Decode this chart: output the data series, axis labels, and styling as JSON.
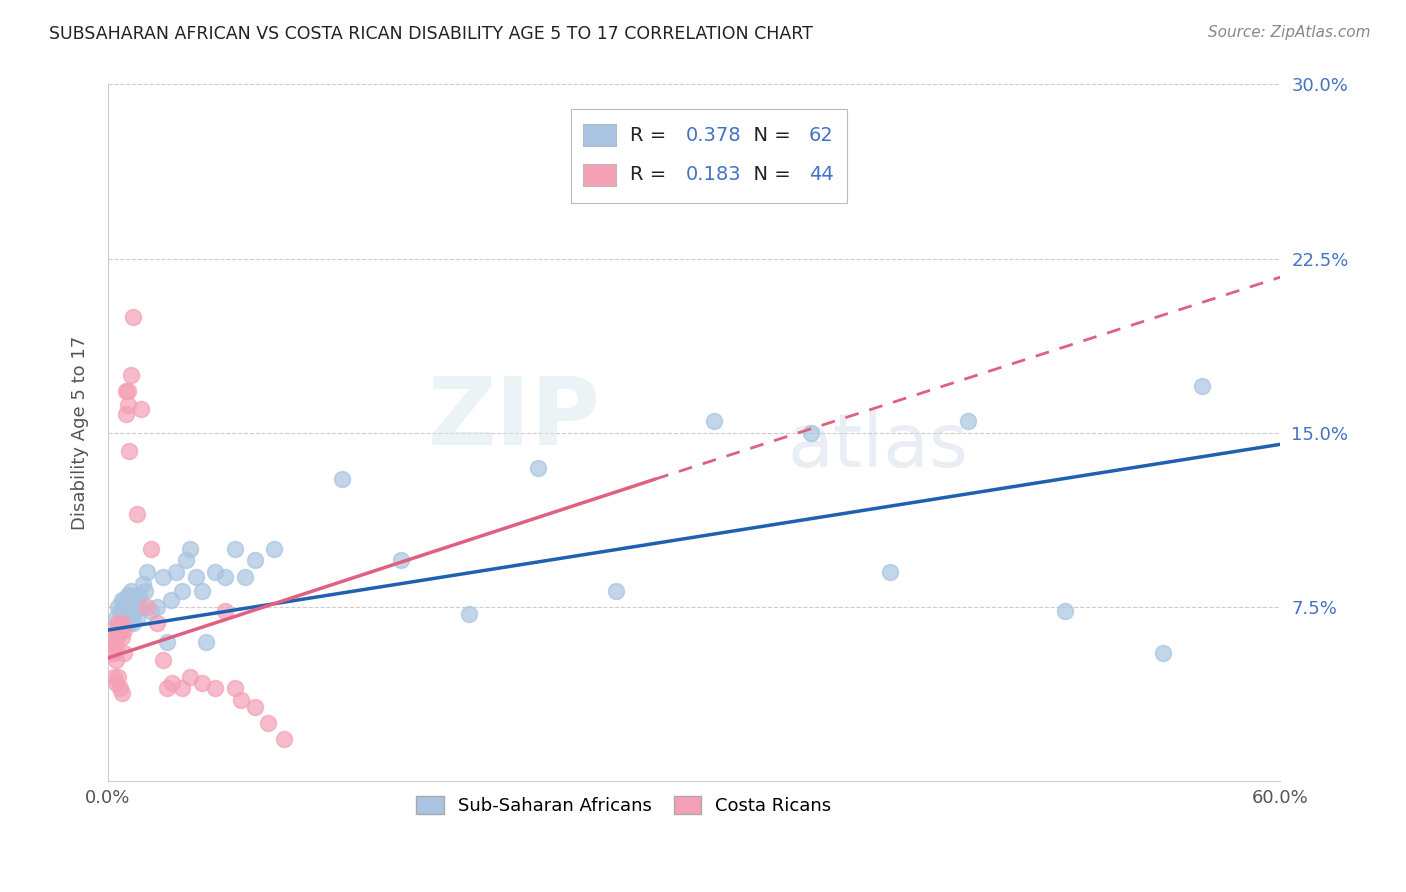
{
  "title": "SUBSAHARAN AFRICAN VS COSTA RICAN DISABILITY AGE 5 TO 17 CORRELATION CHART",
  "source": "Source: ZipAtlas.com",
  "ylabel": "Disability Age 5 to 17",
  "xlim": [
    0,
    0.6
  ],
  "ylim": [
    0,
    0.3
  ],
  "xticks": [
    0.0,
    0.1,
    0.2,
    0.3,
    0.4,
    0.5,
    0.6
  ],
  "yticks": [
    0.0,
    0.075,
    0.15,
    0.225,
    0.3
  ],
  "xtick_labels": [
    "0.0%",
    "",
    "",
    "",
    "",
    "",
    "60.0%"
  ],
  "ytick_labels": [
    "",
    "7.5%",
    "15.0%",
    "22.5%",
    "30.0%"
  ],
  "blue_R": 0.378,
  "blue_N": 62,
  "pink_R": 0.183,
  "pink_N": 44,
  "blue_color": "#A8C4E0",
  "pink_color": "#F4A0B5",
  "blue_line_color": "#2060B0",
  "pink_line_color": "#E06080",
  "watermark_zip": "ZIP",
  "watermark_atlas": "atlas",
  "legend_label_blue": "Sub-Saharan Africans",
  "legend_label_pink": "Costa Ricans",
  "blue_points_x": [
    0.004,
    0.005,
    0.005,
    0.006,
    0.006,
    0.007,
    0.007,
    0.007,
    0.008,
    0.008,
    0.008,
    0.009,
    0.009,
    0.01,
    0.01,
    0.01,
    0.011,
    0.011,
    0.011,
    0.012,
    0.012,
    0.012,
    0.013,
    0.013,
    0.014,
    0.015,
    0.015,
    0.016,
    0.017,
    0.018,
    0.019,
    0.02,
    0.022,
    0.025,
    0.028,
    0.03,
    0.032,
    0.035,
    0.038,
    0.04,
    0.042,
    0.045,
    0.048,
    0.05,
    0.055,
    0.06,
    0.065,
    0.07,
    0.075,
    0.085,
    0.12,
    0.15,
    0.185,
    0.22,
    0.26,
    0.31,
    0.36,
    0.4,
    0.44,
    0.49,
    0.54,
    0.56
  ],
  "blue_points_y": [
    0.07,
    0.068,
    0.075,
    0.068,
    0.073,
    0.068,
    0.073,
    0.078,
    0.068,
    0.073,
    0.078,
    0.068,
    0.075,
    0.068,
    0.073,
    0.08,
    0.068,
    0.075,
    0.08,
    0.07,
    0.075,
    0.082,
    0.068,
    0.075,
    0.073,
    0.07,
    0.078,
    0.08,
    0.075,
    0.085,
    0.082,
    0.09,
    0.073,
    0.075,
    0.088,
    0.06,
    0.078,
    0.09,
    0.082,
    0.095,
    0.1,
    0.088,
    0.082,
    0.06,
    0.09,
    0.088,
    0.1,
    0.088,
    0.095,
    0.1,
    0.13,
    0.095,
    0.072,
    0.135,
    0.082,
    0.155,
    0.15,
    0.09,
    0.155,
    0.073,
    0.055,
    0.17
  ],
  "pink_points_x": [
    0.001,
    0.002,
    0.002,
    0.003,
    0.003,
    0.003,
    0.004,
    0.004,
    0.004,
    0.005,
    0.005,
    0.005,
    0.006,
    0.006,
    0.007,
    0.007,
    0.007,
    0.008,
    0.008,
    0.009,
    0.009,
    0.01,
    0.01,
    0.011,
    0.012,
    0.013,
    0.015,
    0.017,
    0.02,
    0.022,
    0.025,
    0.028,
    0.03,
    0.033,
    0.038,
    0.042,
    0.048,
    0.055,
    0.06,
    0.065,
    0.068,
    0.075,
    0.082,
    0.09
  ],
  "pink_points_y": [
    0.065,
    0.062,
    0.055,
    0.06,
    0.055,
    0.045,
    0.058,
    0.052,
    0.042,
    0.068,
    0.063,
    0.045,
    0.065,
    0.04,
    0.068,
    0.062,
    0.038,
    0.065,
    0.055,
    0.158,
    0.168,
    0.162,
    0.168,
    0.142,
    0.175,
    0.2,
    0.115,
    0.16,
    0.075,
    0.1,
    0.068,
    0.052,
    0.04,
    0.042,
    0.04,
    0.045,
    0.042,
    0.04,
    0.073,
    0.04,
    0.035,
    0.032,
    0.025,
    0.018
  ]
}
